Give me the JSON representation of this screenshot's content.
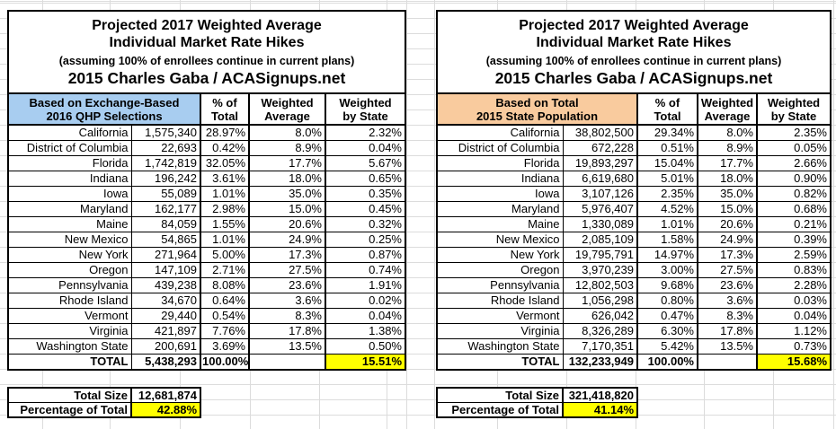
{
  "title": {
    "line1": "Projected 2017 Weighted Average",
    "line2": "Individual Market Rate Hikes",
    "subtitle": "(assuming 100% of enrollees continue in current plans)",
    "byline": "2015 Charles Gaba / ACASignups.net"
  },
  "column_headers": [
    [
      "% of",
      "Total"
    ],
    [
      "Weighted",
      "Average"
    ],
    [
      "Weighted",
      "by State"
    ]
  ],
  "colors": {
    "exchange_header_fill": "#A8CDF0",
    "population_header_fill": "#F9CB9E",
    "highlight_fill": "#FFFF00",
    "border": "#000000",
    "gridline": "#DCDCDC"
  },
  "tables": [
    {
      "basis": [
        "Based on Exchange-Based",
        "2016 QHP Selections"
      ],
      "rows": [
        [
          "California",
          "1,575,340",
          "28.97%",
          "8.0%",
          "2.32%"
        ],
        [
          "District of Columbia",
          "22,693",
          "0.42%",
          "8.9%",
          "0.04%"
        ],
        [
          "Florida",
          "1,742,819",
          "32.05%",
          "17.7%",
          "5.67%"
        ],
        [
          "Indiana",
          "196,242",
          "3.61%",
          "18.0%",
          "0.65%"
        ],
        [
          "Iowa",
          "55,089",
          "1.01%",
          "35.0%",
          "0.35%"
        ],
        [
          "Maryland",
          "162,177",
          "2.98%",
          "15.0%",
          "0.45%"
        ],
        [
          "Maine",
          "84,059",
          "1.55%",
          "20.6%",
          "0.32%"
        ],
        [
          "New Mexico",
          "54,865",
          "1.01%",
          "24.9%",
          "0.25%"
        ],
        [
          "New York",
          "271,964",
          "5.00%",
          "17.3%",
          "0.87%"
        ],
        [
          "Oregon",
          "147,109",
          "2.71%",
          "27.5%",
          "0.74%"
        ],
        [
          "Pennsylvania",
          "439,238",
          "8.08%",
          "23.6%",
          "1.91%"
        ],
        [
          "Rhode Island",
          "34,670",
          "0.64%",
          "3.6%",
          "0.02%"
        ],
        [
          "Vermont",
          "29,440",
          "0.54%",
          "8.3%",
          "0.04%"
        ],
        [
          "Virginia",
          "421,897",
          "7.76%",
          "17.8%",
          "1.38%"
        ],
        [
          "Washington State",
          "200,691",
          "3.69%",
          "13.5%",
          "0.50%"
        ]
      ],
      "total": [
        "TOTAL",
        "5,438,293",
        "100.00%",
        "",
        "15.51%"
      ],
      "summary": {
        "total_size_label": "Total Size",
        "total_size_value": "12,681,874",
        "pct_label": "Percentage of Total",
        "pct_value": "42.88%"
      }
    },
    {
      "basis": [
        "Based on Total",
        "2015 State Population"
      ],
      "rows": [
        [
          "California",
          "38,802,500",
          "29.34%",
          "8.0%",
          "2.35%"
        ],
        [
          "District of Columbia",
          "672,228",
          "0.51%",
          "8.9%",
          "0.05%"
        ],
        [
          "Florida",
          "19,893,297",
          "15.04%",
          "17.7%",
          "2.66%"
        ],
        [
          "Indiana",
          "6,619,680",
          "5.01%",
          "18.0%",
          "0.90%"
        ],
        [
          "Iowa",
          "3,107,126",
          "2.35%",
          "35.0%",
          "0.82%"
        ],
        [
          "Maryland",
          "5,976,407",
          "4.52%",
          "15.0%",
          "0.68%"
        ],
        [
          "Maine",
          "1,330,089",
          "1.01%",
          "20.6%",
          "0.21%"
        ],
        [
          "New Mexico",
          "2,085,109",
          "1.58%",
          "24.9%",
          "0.39%"
        ],
        [
          "New York",
          "19,795,791",
          "14.97%",
          "17.3%",
          "2.59%"
        ],
        [
          "Oregon",
          "3,970,239",
          "3.00%",
          "27.5%",
          "0.83%"
        ],
        [
          "Pennsylvania",
          "12,802,503",
          "9.68%",
          "23.6%",
          "2.28%"
        ],
        [
          "Rhode Island",
          "1,056,298",
          "0.80%",
          "3.6%",
          "0.03%"
        ],
        [
          "Vermont",
          "626,042",
          "0.47%",
          "8.3%",
          "0.04%"
        ],
        [
          "Virginia",
          "8,326,289",
          "6.30%",
          "17.8%",
          "1.12%"
        ],
        [
          "Washington State",
          "7,170,351",
          "5.42%",
          "13.5%",
          "0.73%"
        ]
      ],
      "total": [
        "TOTAL",
        "132,233,949",
        "100.00%",
        "",
        "15.68%"
      ],
      "summary": {
        "total_size_label": "Total Size",
        "total_size_value": "321,418,820",
        "pct_label": "Percentage of Total",
        "pct_value": "41.14%"
      }
    }
  ]
}
